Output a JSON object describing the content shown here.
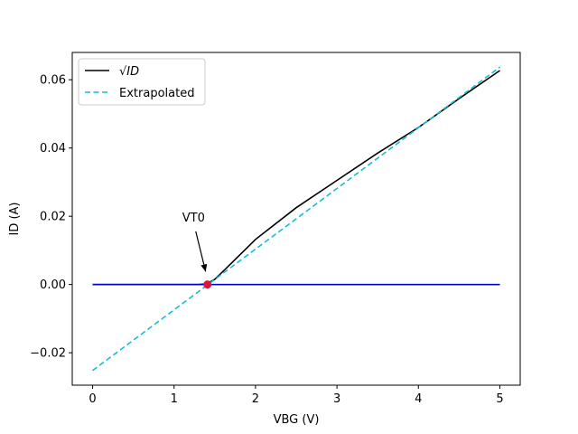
{
  "chart_data": {
    "type": "line",
    "xlabel": "VBG (V)",
    "ylabel": "ID (A)",
    "xlim": [
      -0.25,
      5.25
    ],
    "ylim": [
      -0.0295,
      0.068
    ],
    "x_ticks": [
      0,
      1,
      2,
      3,
      4,
      5
    ],
    "x_tick_labels": [
      "0",
      "1",
      "2",
      "3",
      "4",
      "5"
    ],
    "y_ticks": [
      -0.02,
      0.0,
      0.02,
      0.04,
      0.06
    ],
    "y_tick_labels": [
      "−0.02",
      "0.00",
      "0.02",
      "0.04",
      "0.06"
    ],
    "grid": false,
    "legend_position": "upper-left",
    "legend_entries": [
      {
        "label": "√ID",
        "color": "#000000",
        "style": "solid"
      },
      {
        "label": "Extrapolated",
        "color": "#17becf",
        "style": "dashed"
      }
    ],
    "series": [
      {
        "color": "#000000",
        "style": "solid",
        "x": [
          0.0,
          0.5,
          1.0,
          1.3,
          1.4,
          1.5,
          1.6,
          1.8,
          2.0,
          2.5,
          3.0,
          3.5,
          4.0,
          4.5,
          5.0
        ],
        "y": [
          0.0,
          0.0,
          0.0,
          0.0,
          0.0002,
          0.0015,
          0.0038,
          0.0085,
          0.0132,
          0.0225,
          0.0305,
          0.0385,
          0.046,
          0.0545,
          0.0627
        ]
      },
      {
        "color": "#17becf",
        "style": "dashed",
        "x": [
          0.0,
          5.0
        ],
        "y": [
          -0.0252,
          0.0637
        ]
      },
      {
        "color": "#0000cc",
        "style": "solid",
        "x": [
          0.0,
          5.0
        ],
        "y": [
          0.0,
          0.0
        ]
      }
    ],
    "marker": {
      "x": 1.41,
      "y": 0.0,
      "color": "#dc143c"
    },
    "annotation": {
      "text": "VT0",
      "text_x": 1.1,
      "text_y": 0.0185,
      "arrow_to_x": 1.41,
      "arrow_to_y": 0.0035
    }
  }
}
